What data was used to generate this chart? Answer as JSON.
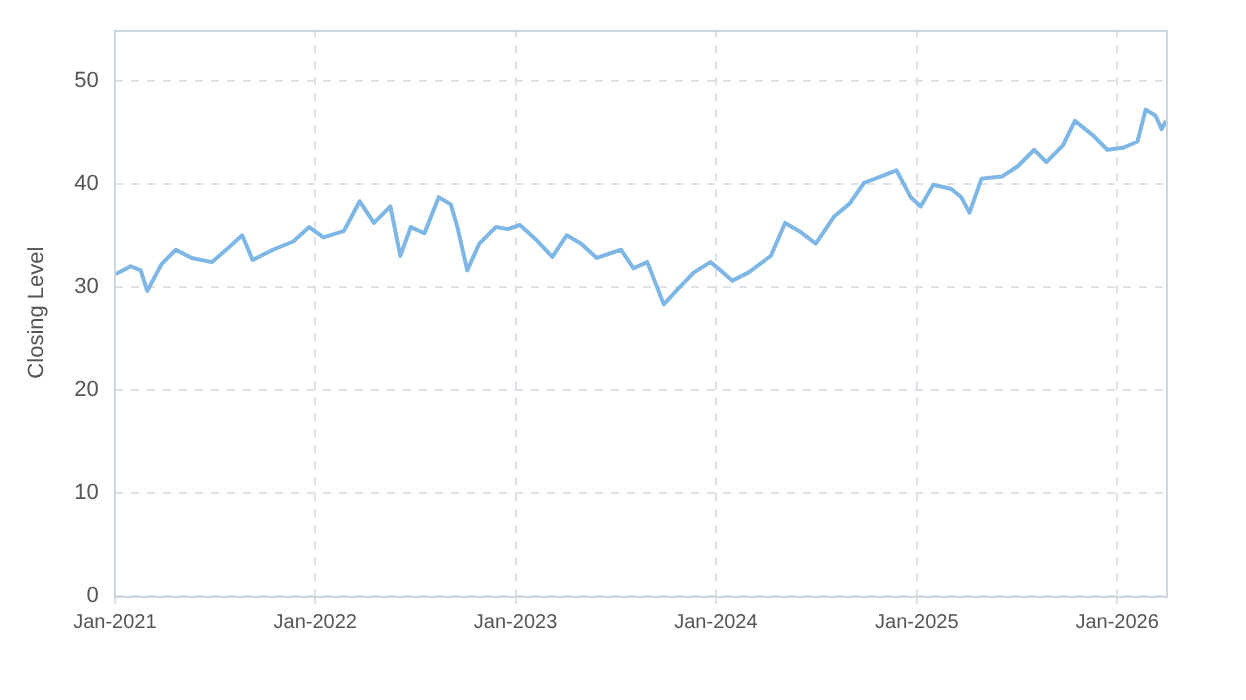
{
  "chart_data": {
    "type": "line",
    "ylabel": "Closing Level",
    "x": [
      "2021-01-01",
      "2021-01-30",
      "2021-02-17",
      "2021-03-01",
      "2021-03-27",
      "2021-04-22",
      "2021-05-21",
      "2021-06-27",
      "2021-07-27",
      "2021-08-21",
      "2021-09-09",
      "2021-10-16",
      "2021-11-22",
      "2021-12-21",
      "2022-01-16",
      "2022-02-22",
      "2022-03-23",
      "2022-04-18",
      "2022-05-18",
      "2022-06-05",
      "2022-06-24",
      "2022-07-19",
      "2022-08-14",
      "2022-09-05",
      "2022-09-17",
      "2022-10-05",
      "2022-10-27",
      "2022-11-26",
      "2022-12-18",
      "2023-01-09",
      "2023-02-07",
      "2023-03-09",
      "2023-04-04",
      "2023-04-30",
      "2023-05-29",
      "2023-07-12",
      "2023-08-04",
      "2023-08-29",
      "2023-09-28",
      "2023-10-24",
      "2023-11-22",
      "2023-12-22",
      "2024-01-05",
      "2024-01-31",
      "2024-03-01",
      "2024-04-10",
      "2024-05-06",
      "2024-06-01",
      "2024-07-01",
      "2024-08-03",
      "2024-09-01",
      "2024-09-27",
      "2024-10-27",
      "2024-11-25",
      "2024-12-21",
      "2025-01-08",
      "2025-01-31",
      "2025-03-05",
      "2025-03-23",
      "2025-04-07",
      "2025-04-29",
      "2025-06-05",
      "2025-07-04",
      "2025-08-03",
      "2025-08-25",
      "2025-09-24",
      "2025-10-16",
      "2025-11-18",
      "2025-12-14",
      "2026-01-12",
      "2026-02-07",
      "2026-02-22",
      "2026-03-12",
      "2026-03-23",
      "2026-03-31"
    ],
    "series": [
      {
        "color": "#7eb6e6",
        "values": [
          31.2,
          32,
          31.6,
          29.6,
          32.2,
          33.6,
          32.8,
          32.4,
          33.8,
          35,
          32.6,
          33.6,
          34.4,
          35.8,
          34.8,
          35.4,
          38.3,
          36.2,
          37.8,
          33,
          35.8,
          35.2,
          38.7,
          38,
          35.8,
          31.6,
          34.2,
          35.8,
          35.6,
          36,
          34.6,
          32.9,
          35,
          34.2,
          32.8,
          33.6,
          31.8,
          32.4,
          28.3,
          29.8,
          31.4,
          32.4,
          31.8,
          30.6,
          31.4,
          33,
          36.2,
          35.4,
          34.2,
          36.8,
          38.1,
          40.1,
          40.7,
          41.3,
          38.7,
          37.8,
          39.9,
          39.5,
          38.7,
          37.2,
          40.5,
          40.7,
          41.7,
          43.3,
          42.1,
          43.7,
          46.1,
          44.7,
          43.3,
          43.5,
          44.1,
          47.2,
          46.6,
          45.3,
          46.1
        ]
      }
    ],
    "xlim": [
      "2021-01-01",
      "2026-03-31"
    ],
    "xticks": [
      {
        "value": "2021-01-01",
        "label": "Jan-2021"
      },
      {
        "value": "2022-01-01",
        "label": "Jan-2022"
      },
      {
        "value": "2023-01-01",
        "label": "Jan-2023"
      },
      {
        "value": "2024-01-01",
        "label": "Jan-2024"
      },
      {
        "value": "2025-01-01",
        "label": "Jan-2025"
      },
      {
        "value": "2026-01-01",
        "label": "Jan-2026"
      }
    ],
    "ylim": [
      0,
      55
    ],
    "yticks": [
      0,
      10,
      20,
      30,
      40,
      50
    ],
    "grid": true,
    "legend": false,
    "marker": "none",
    "line_style": "solid"
  }
}
